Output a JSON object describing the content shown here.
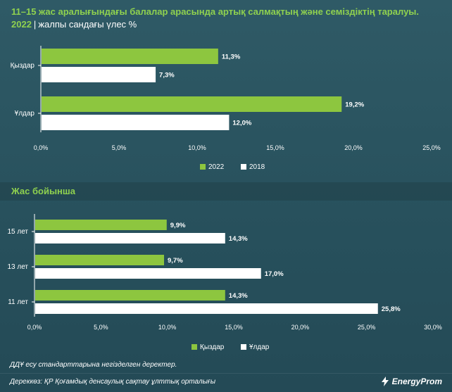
{
  "header": {
    "title": "11–15 жас аралығындағы балалар арасында артық салмақтың және семіздіктің таралуы.",
    "year": "2022",
    "separator": "|",
    "subtitle": "жалпы сандағы үлес %"
  },
  "section2_title": "Жас бойынша",
  "footer": {
    "note": "ДДҰ есу стандарттарына негізделген деректер.",
    "source": "Дереккөз: ҚР Қоғамдық денсаулық сақтау ұлттық орталығы",
    "brand": "EnergyProm"
  },
  "colors": {
    "green": "#8dc63f",
    "white": "#ffffff",
    "bg": "#2c5460"
  },
  "chart_data": [
    {
      "type": "bar",
      "orientation": "horizontal",
      "categories": [
        "Қыздар",
        "Ұлдар"
      ],
      "series": [
        {
          "name": "2022",
          "color": "#8dc63f",
          "values": [
            11.3,
            19.2
          ],
          "labels": [
            "11,3%",
            "19,2%"
          ]
        },
        {
          "name": "2018",
          "color": "#ffffff",
          "values": [
            7.3,
            12.0
          ],
          "labels": [
            "7,3%",
            "12,0%"
          ]
        }
      ],
      "xlim": [
        0,
        25
      ],
      "xticks": [
        0,
        5,
        10,
        15,
        20,
        25
      ],
      "xtick_labels": [
        "0,0%",
        "5,0%",
        "10,0%",
        "15,0%",
        "20,0%",
        "25,0%"
      ],
      "legend": "bottom-center",
      "title": "",
      "xlabel": "",
      "ylabel": ""
    },
    {
      "type": "bar",
      "orientation": "horizontal",
      "categories": [
        "15 лет",
        "13 лет",
        "11 лет"
      ],
      "series": [
        {
          "name": "Қыздар",
          "color": "#8dc63f",
          "values": [
            9.9,
            9.7,
            14.3
          ],
          "labels": [
            "9,9%",
            "9,7%",
            "14,3%"
          ]
        },
        {
          "name": "Ұлдар",
          "color": "#ffffff",
          "values": [
            14.3,
            17.0,
            25.8
          ],
          "labels": [
            "14,3%",
            "17,0%",
            "25,8%"
          ]
        }
      ],
      "xlim": [
        0,
        30
      ],
      "xticks": [
        0,
        5,
        10,
        15,
        20,
        25,
        30
      ],
      "xtick_labels": [
        "0,0%",
        "5,0%",
        "10,0%",
        "15,0%",
        "20,0%",
        "25,0%",
        "30,0%"
      ],
      "legend": "bottom-center",
      "title": "",
      "xlabel": "",
      "ylabel": ""
    }
  ]
}
